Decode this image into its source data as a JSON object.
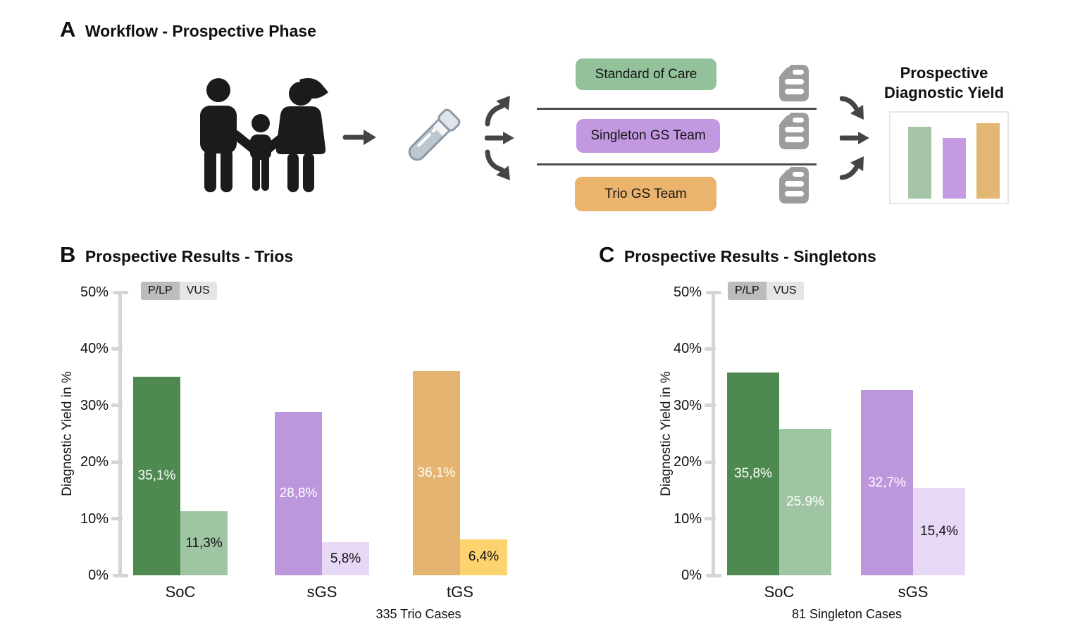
{
  "figure": {
    "background": "#ffffff"
  },
  "panelA": {
    "label": "A",
    "title": "Workflow - Prospective Phase",
    "icons": {
      "family": "trio-family-icon",
      "tube": "sample-tube-icon",
      "document": "report-document-icon",
      "arrows": "flow-arrow-icons"
    },
    "pathways": [
      {
        "label": "Standard of Care",
        "color": "#92c19a"
      },
      {
        "label": "Singleton GS Team",
        "color": "#c298e1"
      },
      {
        "label": "Trio GS Team",
        "color": "#eab46c"
      }
    ],
    "mini_chart": {
      "title_line1": "Prospective",
      "title_line2": "Diagnostic Yield",
      "bars": [
        {
          "name": "SoC",
          "color": "#a5c5a6",
          "height_frac": 0.85
        },
        {
          "name": "sGS",
          "color": "#c59be2",
          "height_frac": 0.72
        },
        {
          "name": "tGS",
          "color": "#e4b673",
          "height_frac": 0.89
        }
      ]
    }
  },
  "chart_data": [
    {
      "id": "trios",
      "type": "bar",
      "panel_label": "B",
      "title": "Prospective Results - Trios",
      "categories": [
        "SoC",
        "sGS",
        "tGS"
      ],
      "series": [
        {
          "name": "P/LP",
          "values": [
            35.1,
            28.8,
            36.1
          ],
          "labels": [
            "35,1%",
            "28,8%",
            "36,1%"
          ],
          "label_colors": [
            "#ffffff",
            "#ffffff",
            "#ffffff"
          ],
          "bar_colors": [
            "#4e8a50",
            "#bd97dc",
            "#e5b470"
          ]
        },
        {
          "name": "VUS",
          "values": [
            11.3,
            5.8,
            6.4
          ],
          "labels": [
            "11,3%",
            "5,8%",
            "6,4%"
          ],
          "label_colors": [
            "#111111",
            "#111111",
            "#111111"
          ],
          "bar_colors": [
            "#9fc5a2",
            "#e7d8f5",
            "#fcd36f"
          ]
        }
      ],
      "ylabel": "Diagnostic Yield in %",
      "ylim": [
        0,
        50
      ],
      "yticks": [
        0,
        10,
        20,
        30,
        40,
        50
      ],
      "ytick_labels": [
        "0%",
        "10%",
        "20%",
        "30%",
        "40%",
        "50%"
      ],
      "legend": {
        "items": [
          "P/LP",
          "VUS"
        ],
        "colors": [
          "#bcbcbc",
          "#e5e5e5"
        ],
        "position": "top-left-inside"
      },
      "caption": "335 Trio Cases",
      "grid": false
    },
    {
      "id": "singletons",
      "type": "bar",
      "panel_label": "C",
      "title": "Prospective Results - Singletons",
      "categories": [
        "SoC",
        "sGS"
      ],
      "series": [
        {
          "name": "P/LP",
          "values": [
            35.8,
            32.7
          ],
          "labels": [
            "35,8%",
            "32,7%"
          ],
          "label_colors": [
            "#ffffff",
            "#ffffff"
          ],
          "bar_colors": [
            "#4e8a50",
            "#bd97dc"
          ]
        },
        {
          "name": "VUS",
          "values": [
            25.9,
            15.4
          ],
          "labels": [
            "25.9%",
            "15,4%"
          ],
          "label_colors": [
            "#ffffff",
            "#111111"
          ],
          "bar_colors": [
            "#9fc5a2",
            "#e7d8f5"
          ]
        }
      ],
      "ylabel": "Diagnostic Yield in %",
      "ylim": [
        0,
        50
      ],
      "yticks": [
        0,
        10,
        20,
        30,
        40,
        50
      ],
      "ytick_labels": [
        "0%",
        "10%",
        "20%",
        "30%",
        "40%",
        "50%"
      ],
      "legend": {
        "items": [
          "P/LP",
          "VUS"
        ],
        "colors": [
          "#bcbcbc",
          "#e5e5e5"
        ],
        "position": "top-left-inside"
      },
      "caption": "81 Singleton Cases",
      "grid": false
    }
  ]
}
